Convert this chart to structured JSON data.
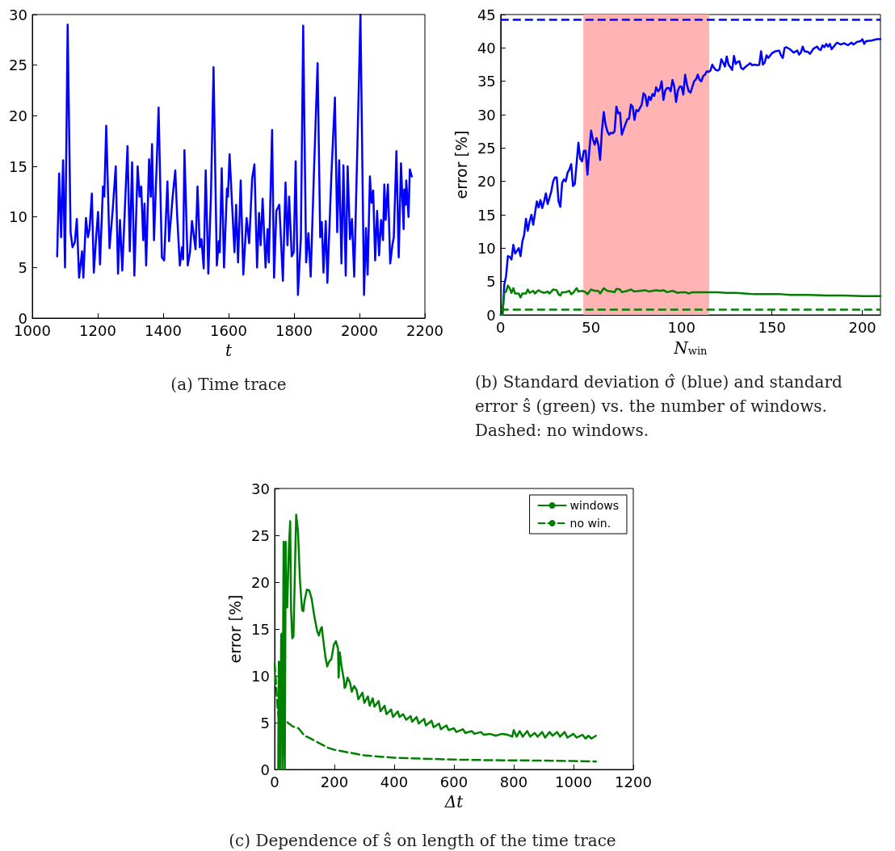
{
  "chart_data": [
    {
      "type": "line",
      "title": "(a) Time trace",
      "xlabel": "t",
      "xlim": [
        1000,
        2200
      ],
      "xticks": [
        1000,
        1200,
        1400,
        1600,
        1800,
        2000,
        2200
      ],
      "ylim": [
        0,
        30
      ],
      "yticks": [
        0,
        5,
        10,
        15,
        20,
        25,
        30
      ],
      "series": [
        {
          "color": "#0000ff",
          "x": [
            1076,
            1082,
            1088,
            1094,
            1100,
            1108,
            1117,
            1123,
            1130,
            1136,
            1143,
            1152,
            1156,
            1164,
            1170,
            1175,
            1182,
            1188,
            1196,
            1201,
            1207,
            1216,
            1220,
            1226,
            1236,
            1246,
            1255,
            1262,
            1268,
            1275,
            1291,
            1298,
            1305,
            1312,
            1322,
            1328,
            1333,
            1339,
            1343,
            1348,
            1357,
            1362,
            1366,
            1372,
            1380,
            1386,
            1396,
            1403,
            1413,
            1418,
            1429,
            1437,
            1443,
            1451,
            1458,
            1461,
            1465,
            1475,
            1482,
            1488,
            1499,
            1505,
            1512,
            1517,
            1524,
            1530,
            1538,
            1546,
            1554,
            1564,
            1570,
            1573,
            1579,
            1586,
            1595,
            1598,
            1603,
            1611,
            1618,
            1623,
            1629,
            1637,
            1645,
            1655,
            1663,
            1672,
            1679,
            1687,
            1693,
            1698,
            1704,
            1713,
            1719,
            1723,
            1733,
            1739,
            1746,
            1755,
            1766,
            1774,
            1780,
            1785,
            1793,
            1799,
            1805,
            1812,
            1821,
            1828,
            1837,
            1844,
            1851,
            1860,
            1872,
            1880,
            1885,
            1890,
            1897,
            1902,
            1914,
            1925,
            1932,
            1938,
            1945,
            1951,
            1958,
            1964,
            1971,
            1977,
            1984,
            1997,
            2003,
            2014,
            2020,
            2025,
            2032,
            2037,
            2042,
            2048,
            2054,
            2060,
            2066,
            2072,
            2076,
            2080,
            2087,
            2094,
            2101,
            2105,
            2113,
            2120,
            2127,
            2135,
            2137,
            2141,
            2143,
            2150,
            2154,
            2160
          ],
          "values": [
            6.1,
            14.3,
            8,
            15.6,
            5,
            29,
            8.5,
            7,
            7.5,
            9.8,
            4,
            6.6,
            4,
            9.9,
            8,
            8.8,
            12.3,
            4.5,
            8.4,
            10.5,
            5.3,
            13,
            12,
            19,
            6.9,
            10.8,
            15,
            4.4,
            9.7,
            4.7,
            17,
            6.6,
            15.4,
            4.2,
            15,
            12,
            13,
            7.7,
            11.3,
            5.2,
            15.7,
            12,
            17.2,
            7.7,
            15,
            20.8,
            6,
            5.7,
            13.5,
            7.6,
            12,
            14.6,
            10,
            5.2,
            7,
            5.8,
            16.6,
            5.2,
            6.5,
            9.6,
            6.8,
            13,
            7,
            7.8,
            4.9,
            14.6,
            4.4,
            12,
            24.8,
            5.2,
            7.6,
            6.5,
            14.8,
            5,
            12.8,
            12,
            16.2,
            11,
            6.5,
            11.2,
            5.5,
            13.6,
            4.3,
            9.9,
            7.4,
            13.8,
            15.2,
            5,
            10.4,
            7.2,
            11.8,
            5,
            8.8,
            5.5,
            18.6,
            4,
            10.6,
            11.2,
            3.7,
            13.4,
            7.2,
            12,
            6.1,
            6.5,
            15.5,
            2.3,
            8,
            28.9,
            5.5,
            8.4,
            4.1,
            13.5,
            25.2,
            8,
            9.5,
            4.5,
            9.6,
            3.5,
            14,
            21.8,
            8.5,
            15.6,
            5.4,
            15.1,
            4.2,
            15,
            7.8,
            9.8,
            4.1,
            21.5,
            30,
            2.3,
            8.9,
            4.3,
            14,
            11.4,
            12.6,
            5.7,
            10.6,
            6.2,
            9.7,
            7.7,
            13.2,
            9.7,
            13.2,
            5.4,
            7.3,
            8,
            16.5,
            6,
            15.3,
            8.8,
            12.7,
            11.2,
            13.6,
            10,
            14.7,
            14
          ]
        }
      ]
    },
    {
      "type": "line",
      "title": "(b) Standard deviation σ̂ (blue) and standard error ŝ (green) vs. the number of windows. Dashed: no windows.",
      "xlabel": "N$_{win}$",
      "ylabel": "error [%]",
      "xlim": [
        0,
        210
      ],
      "xticks": [
        0,
        50,
        100,
        150,
        200
      ],
      "ylim": [
        0,
        45
      ],
      "yticks": [
        0,
        5,
        10,
        15,
        20,
        25,
        30,
        35,
        40,
        45
      ],
      "ref_lines": [
        {
          "axis": "y",
          "value": 44.2,
          "color": "#0000ff",
          "line_style": "dashed"
        },
        {
          "axis": "y",
          "value": 0.8,
          "color": "#008000",
          "line_style": "dashed"
        }
      ],
      "bands": [
        {
          "axis": "x",
          "from": 45.7,
          "to": 115.3,
          "color": "#ffb3b3"
        }
      ],
      "series": [
        {
          "color": "#0000ff",
          "x": [
            0,
            1,
            2,
            3,
            4,
            5,
            6,
            7,
            8,
            9,
            10,
            11,
            12,
            13,
            14,
            15,
            16,
            17,
            18,
            20,
            21,
            22,
            23,
            24,
            25,
            26,
            28,
            29,
            30,
            31,
            32,
            33,
            34,
            35,
            36,
            37,
            38,
            39,
            40,
            41,
            42,
            43,
            44,
            45,
            46,
            47,
            48,
            49,
            50,
            51,
            52,
            53,
            54,
            55,
            56,
            57,
            58,
            59,
            60,
            61,
            62,
            63,
            64,
            65,
            66,
            67,
            68,
            70,
            71,
            72,
            73,
            74,
            75,
            76,
            78,
            79,
            80,
            81,
            82,
            83,
            84,
            85,
            86,
            87,
            88,
            89,
            90,
            91,
            92,
            93,
            94,
            95,
            96,
            97,
            98,
            99,
            100,
            101,
            102,
            103,
            104,
            105,
            106,
            107,
            108,
            109,
            110,
            111,
            112,
            113,
            114,
            115,
            116,
            117,
            118,
            119,
            120,
            121,
            122,
            123,
            124,
            125,
            126,
            127,
            128,
            129,
            130,
            131,
            132,
            133,
            134,
            136,
            137,
            138,
            139,
            140,
            142,
            143,
            144,
            145,
            146,
            147,
            148,
            150,
            152,
            154,
            155,
            156,
            157,
            158,
            160,
            162,
            164,
            165,
            166,
            167,
            168,
            170,
            171,
            173,
            175,
            176,
            177,
            178,
            179,
            180,
            181,
            182,
            183,
            185,
            186,
            188,
            190,
            192,
            194,
            195,
            197,
            199,
            200,
            201,
            202,
            205,
            208,
            210
          ],
          "values": [
            0,
            0,
            4.5,
            5.8,
            8.8,
            8.7,
            8.3,
            10.5,
            9.2,
            9.6,
            10,
            8.8,
            11,
            12,
            14.4,
            12.6,
            14,
            15,
            13.5,
            17,
            16.1,
            17.2,
            16,
            17,
            18.2,
            16.6,
            18.5,
            20,
            20.6,
            20.6,
            17,
            16.2,
            19.8,
            20.3,
            20,
            21.3,
            21.8,
            22.6,
            19.3,
            19.6,
            22.7,
            25.8,
            23.4,
            23,
            24.6,
            24.6,
            21,
            24.5,
            27.6,
            26.3,
            25.5,
            26.5,
            25.5,
            23.2,
            27.6,
            30.4,
            28.5,
            27.5,
            27,
            27.3,
            27.2,
            27.5,
            31.2,
            30.2,
            30.3,
            27,
            27.8,
            29.3,
            29.4,
            31.5,
            31.2,
            29.2,
            30.7,
            30.5,
            31.5,
            33.2,
            32.9,
            31.3,
            32.7,
            32.2,
            33.1,
            32.8,
            34.1,
            33.5,
            33.8,
            35,
            32.2,
            33.6,
            34,
            34,
            33.5,
            35.2,
            34.2,
            31.9,
            33.6,
            34.2,
            34.2,
            33,
            36,
            34.5,
            33.5,
            33.3,
            34.2,
            35,
            35.3,
            36,
            35.2,
            35,
            35.8,
            36,
            36.5,
            36.4,
            36.6,
            37.5,
            37,
            36.7,
            36.6,
            36.8,
            38.3,
            37.8,
            37.2,
            38.7,
            37.5,
            37.1,
            36.7,
            38.8,
            37.6,
            37.9,
            38,
            37,
            36.8,
            37.3,
            37.5,
            37.7,
            37.4,
            37.5,
            37.4,
            37.5,
            39.5,
            37.5,
            37.8,
            38.9,
            38.5,
            39.2,
            39.5,
            39.6,
            38.9,
            38.5,
            40,
            40.1,
            39.8,
            39.3,
            39.6,
            39,
            39.3,
            40.2,
            39.5,
            39.4,
            39.1,
            39.9,
            40.2,
            39.8,
            39.7,
            40.4,
            40.1,
            40.6,
            40.2,
            40.6,
            39.8,
            40.5,
            40.8,
            40.5,
            40.7,
            40.4,
            40.8,
            40.5,
            40.9,
            41,
            41.3,
            40.6,
            41,
            41.1,
            41.3,
            41.3
          ]
        },
        {
          "color": "#008000",
          "x": [
            0,
            1,
            2,
            3,
            4,
            5,
            6,
            7,
            8,
            10,
            11,
            12,
            14,
            15,
            16,
            18,
            19,
            20,
            21,
            22,
            24,
            26,
            27,
            29,
            31,
            32,
            33,
            34,
            36,
            38,
            39,
            40,
            42,
            43,
            45,
            47,
            48,
            50,
            52,
            54,
            55,
            57,
            59,
            61,
            63,
            64,
            66,
            67,
            70,
            72,
            74,
            77,
            80,
            82,
            84,
            86,
            88,
            90,
            92,
            95,
            98,
            100,
            102,
            104,
            106,
            110,
            115,
            120,
            125,
            130,
            135,
            140,
            145,
            150,
            155,
            160,
            170,
            180,
            190,
            200,
            210
          ],
          "values": [
            0,
            0,
            3.3,
            3.5,
            4.4,
            4,
            3.3,
            4,
            3.2,
            3.2,
            2.6,
            3.2,
            3.2,
            3.8,
            3.3,
            3.6,
            3.2,
            3.5,
            3.7,
            3.5,
            3.3,
            3.5,
            3.2,
            3.8,
            3.7,
            3.1,
            2.9,
            3.4,
            3.4,
            3.6,
            3.1,
            3.3,
            4,
            3.5,
            3.6,
            3.4,
            3.1,
            3.8,
            3.6,
            3.6,
            3.2,
            4,
            3.6,
            3.5,
            3.4,
            3.9,
            3.8,
            3.4,
            3.6,
            3.8,
            3.5,
            3.6,
            3.7,
            3.5,
            3.6,
            3.7,
            3.6,
            3.7,
            3.4,
            3.6,
            3.3,
            3.4,
            3.4,
            3.2,
            3.4,
            3.4,
            3.4,
            3.4,
            3.3,
            3.3,
            3.2,
            3.1,
            3.1,
            3.1,
            3.1,
            3,
            3,
            2.9,
            2.9,
            2.8,
            2.8
          ]
        }
      ]
    },
    {
      "type": "line",
      "title": "(c) Dependence of ŝ on length of the time trace",
      "xlabel": "Δt",
      "ylabel": "error [%]",
      "xlim": [
        0,
        1200
      ],
      "xticks": [
        0,
        200,
        400,
        600,
        800,
        1000,
        1200
      ],
      "ylim": [
        0,
        30
      ],
      "yticks": [
        0,
        5,
        10,
        15,
        20,
        25,
        30
      ],
      "legend": "top right",
      "series": [
        {
          "name": "windows",
          "color": "#008000",
          "line_style": "solid",
          "x": [
            12,
            14,
            16,
            18,
            22,
            24,
            26,
            30,
            32,
            34,
            37,
            39,
            42,
            48,
            52,
            55,
            59,
            63,
            67,
            72,
            78,
            85,
            92,
            96,
            100,
            108,
            116,
            124,
            132,
            142,
            148,
            154,
            158,
            162,
            170,
            176,
            182,
            190,
            198,
            205,
            212,
            214,
            218,
            224,
            232,
            234,
            238,
            244,
            252,
            258,
            266,
            274,
            280,
            288,
            294,
            300,
            312,
            318,
            328,
            334,
            348,
            354,
            368,
            374,
            390,
            396,
            412,
            418,
            430,
            440,
            455,
            460,
            475,
            482,
            500,
            506,
            525,
            532,
            550,
            556,
            575,
            582,
            600,
            608,
            630,
            638,
            660,
            668,
            690,
            700,
            720,
            740,
            760,
            780,
            795,
            800,
            810,
            820,
            830,
            845,
            855,
            870,
            880,
            895,
            905,
            920,
            930,
            945,
            955,
            970,
            980,
            1000,
            1010,
            1030,
            1040,
            1050,
            1060,
            1075
          ],
          "values": [
            0,
            11.5,
            11.4,
            0,
            14.4,
            14.5,
            0,
            24.3,
            4,
            0,
            24.3,
            17.5,
            17.3,
            24,
            26.5,
            17,
            14,
            14.2,
            20,
            27.2,
            25.5,
            20,
            17,
            16.9,
            18,
            19.2,
            19.1,
            18.2,
            16.5,
            14.8,
            14.3,
            15,
            15.2,
            14,
            12,
            11,
            11.5,
            11.8,
            13.3,
            13.7,
            12.9,
            9.8,
            12.5,
            11,
            9.5,
            8.7,
            8.9,
            9.8,
            9.3,
            8.3,
            8.9,
            8.5,
            7.5,
            7.9,
            8.2,
            7.1,
            7.8,
            6.8,
            7.6,
            6.7,
            7.3,
            6.2,
            6.8,
            5.9,
            6.4,
            5.6,
            6.2,
            5.6,
            5.9,
            5.3,
            5.7,
            5.1,
            5.6,
            4.9,
            5.4,
            4.7,
            5.2,
            4.5,
            4.9,
            4.3,
            4.7,
            4.2,
            4.4,
            4,
            4.3,
            3.9,
            4.1,
            3.8,
            4,
            3.7,
            3.8,
            3.6,
            3.8,
            3.7,
            3.5,
            4.2,
            3.5,
            4.1,
            3.5,
            4.1,
            3.5,
            3.9,
            3.5,
            4,
            3.4,
            4,
            3.6,
            4,
            3.5,
            4,
            3.4,
            3.8,
            3.4,
            3.7,
            3.3,
            3.6,
            3.3,
            3.6
          ]
        },
        {
          "name": "no win.",
          "color": "#008000",
          "line_style": "dashed",
          "x": [
            0,
            5,
            10,
            15,
            20,
            25,
            30,
            40,
            60,
            80,
            100,
            120,
            150,
            180,
            200,
            250,
            300,
            400,
            500,
            600,
            700,
            800,
            900,
            1000,
            1075
          ],
          "values": [
            11.3,
            9,
            6.5,
            5,
            4,
            5,
            5.2,
            5.1,
            4.6,
            4.4,
            3.6,
            3.3,
            2.8,
            2.3,
            2.1,
            1.8,
            1.5,
            1.25,
            1.15,
            1.05,
            1,
            0.97,
            0.95,
            0.9,
            0.85
          ]
        }
      ]
    }
  ]
}
